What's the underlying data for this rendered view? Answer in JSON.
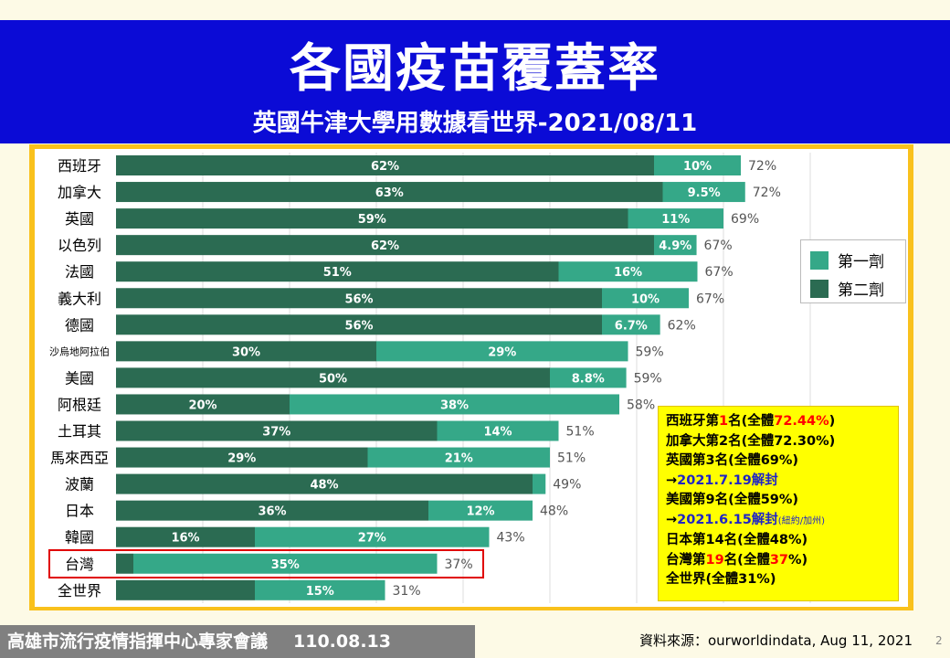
{
  "header": {
    "title": "各國疫苗覆蓋率",
    "subtitle": "英國牛津大學用數據看世界-2021/08/11"
  },
  "footer": {
    "meeting": "高雄市流行疫情指揮中心專家會議",
    "date": "110.08.13",
    "source": "資料來源：ourworldindata, Aug 11, 2021",
    "page": "2"
  },
  "legend": {
    "first_dose": "第一劑",
    "second_dose": "第二劑"
  },
  "notes": {
    "l1a": "西班牙第",
    "l1b": "1",
    "l1c": "名(全體",
    "l1d": "72.44%",
    "l1e": ")",
    "l2": "加拿大第2名(全體72.30%)",
    "l3": "英國第3名(全體69%)",
    "l4a": "→",
    "l4b": "2021.7.19解封",
    "l5": "美國第9名(全體59%)",
    "l6a": "→",
    "l6b": "2021.6.15解封",
    "l6c": "(紐約/加州)",
    "l7": "日本第14名(全體48%)",
    "l8a": "台灣第",
    "l8b": "19",
    "l8c": "名(全體",
    "l8d": "37",
    "l8e": "%)",
    "l9": "全世界(全體31%)"
  },
  "colors": {
    "second_dose": "#2b6b52",
    "first_dose": "#35a888",
    "header_bg": "#0b0bd6",
    "frame": "#f9c11c",
    "highlight": "#e00000"
  },
  "chart_data": {
    "type": "bar",
    "orientation": "horizontal",
    "stacked": true,
    "categories": [
      "西班牙",
      "加拿大",
      "英國",
      "以色列",
      "法國",
      "義大利",
      "德國",
      "沙烏地阿拉伯",
      "美國",
      "阿根廷",
      "土耳其",
      "馬來西亞",
      "波蘭",
      "日本",
      "韓國",
      "台灣",
      "全世界"
    ],
    "series": [
      {
        "name": "第二劑",
        "values": [
          62,
          63,
          59,
          62,
          51,
          56,
          56,
          30,
          50,
          20,
          37,
          29,
          48,
          36,
          16,
          2,
          16
        ],
        "labels": [
          "62%",
          "63%",
          "59%",
          "62%",
          "51%",
          "56%",
          "56%",
          "30%",
          "50%",
          "20%",
          "37%",
          "29%",
          "48%",
          "36%",
          "16%",
          "",
          ""
        ]
      },
      {
        "name": "第一劑",
        "values": [
          10,
          9.5,
          11,
          4.9,
          16,
          10,
          6.7,
          29,
          8.8,
          38,
          14,
          21,
          1.5,
          12,
          27,
          35,
          15
        ],
        "labels": [
          "10%",
          "9.5%",
          "11%",
          "4.9%",
          "16%",
          "10%",
          "6.7%",
          "29%",
          "8.8%",
          "38%",
          "14%",
          "21%",
          "",
          "12%",
          "27%",
          "35%",
          "15%"
        ]
      }
    ],
    "totals": [
      "72%",
      "72%",
      "69%",
      "67%",
      "67%",
      "67%",
      "62%",
      "59%",
      "59%",
      "58%",
      "51%",
      "51%",
      "49%",
      "48%",
      "43%",
      "37%",
      "31%"
    ],
    "grid": true,
    "legend_position": "right"
  }
}
